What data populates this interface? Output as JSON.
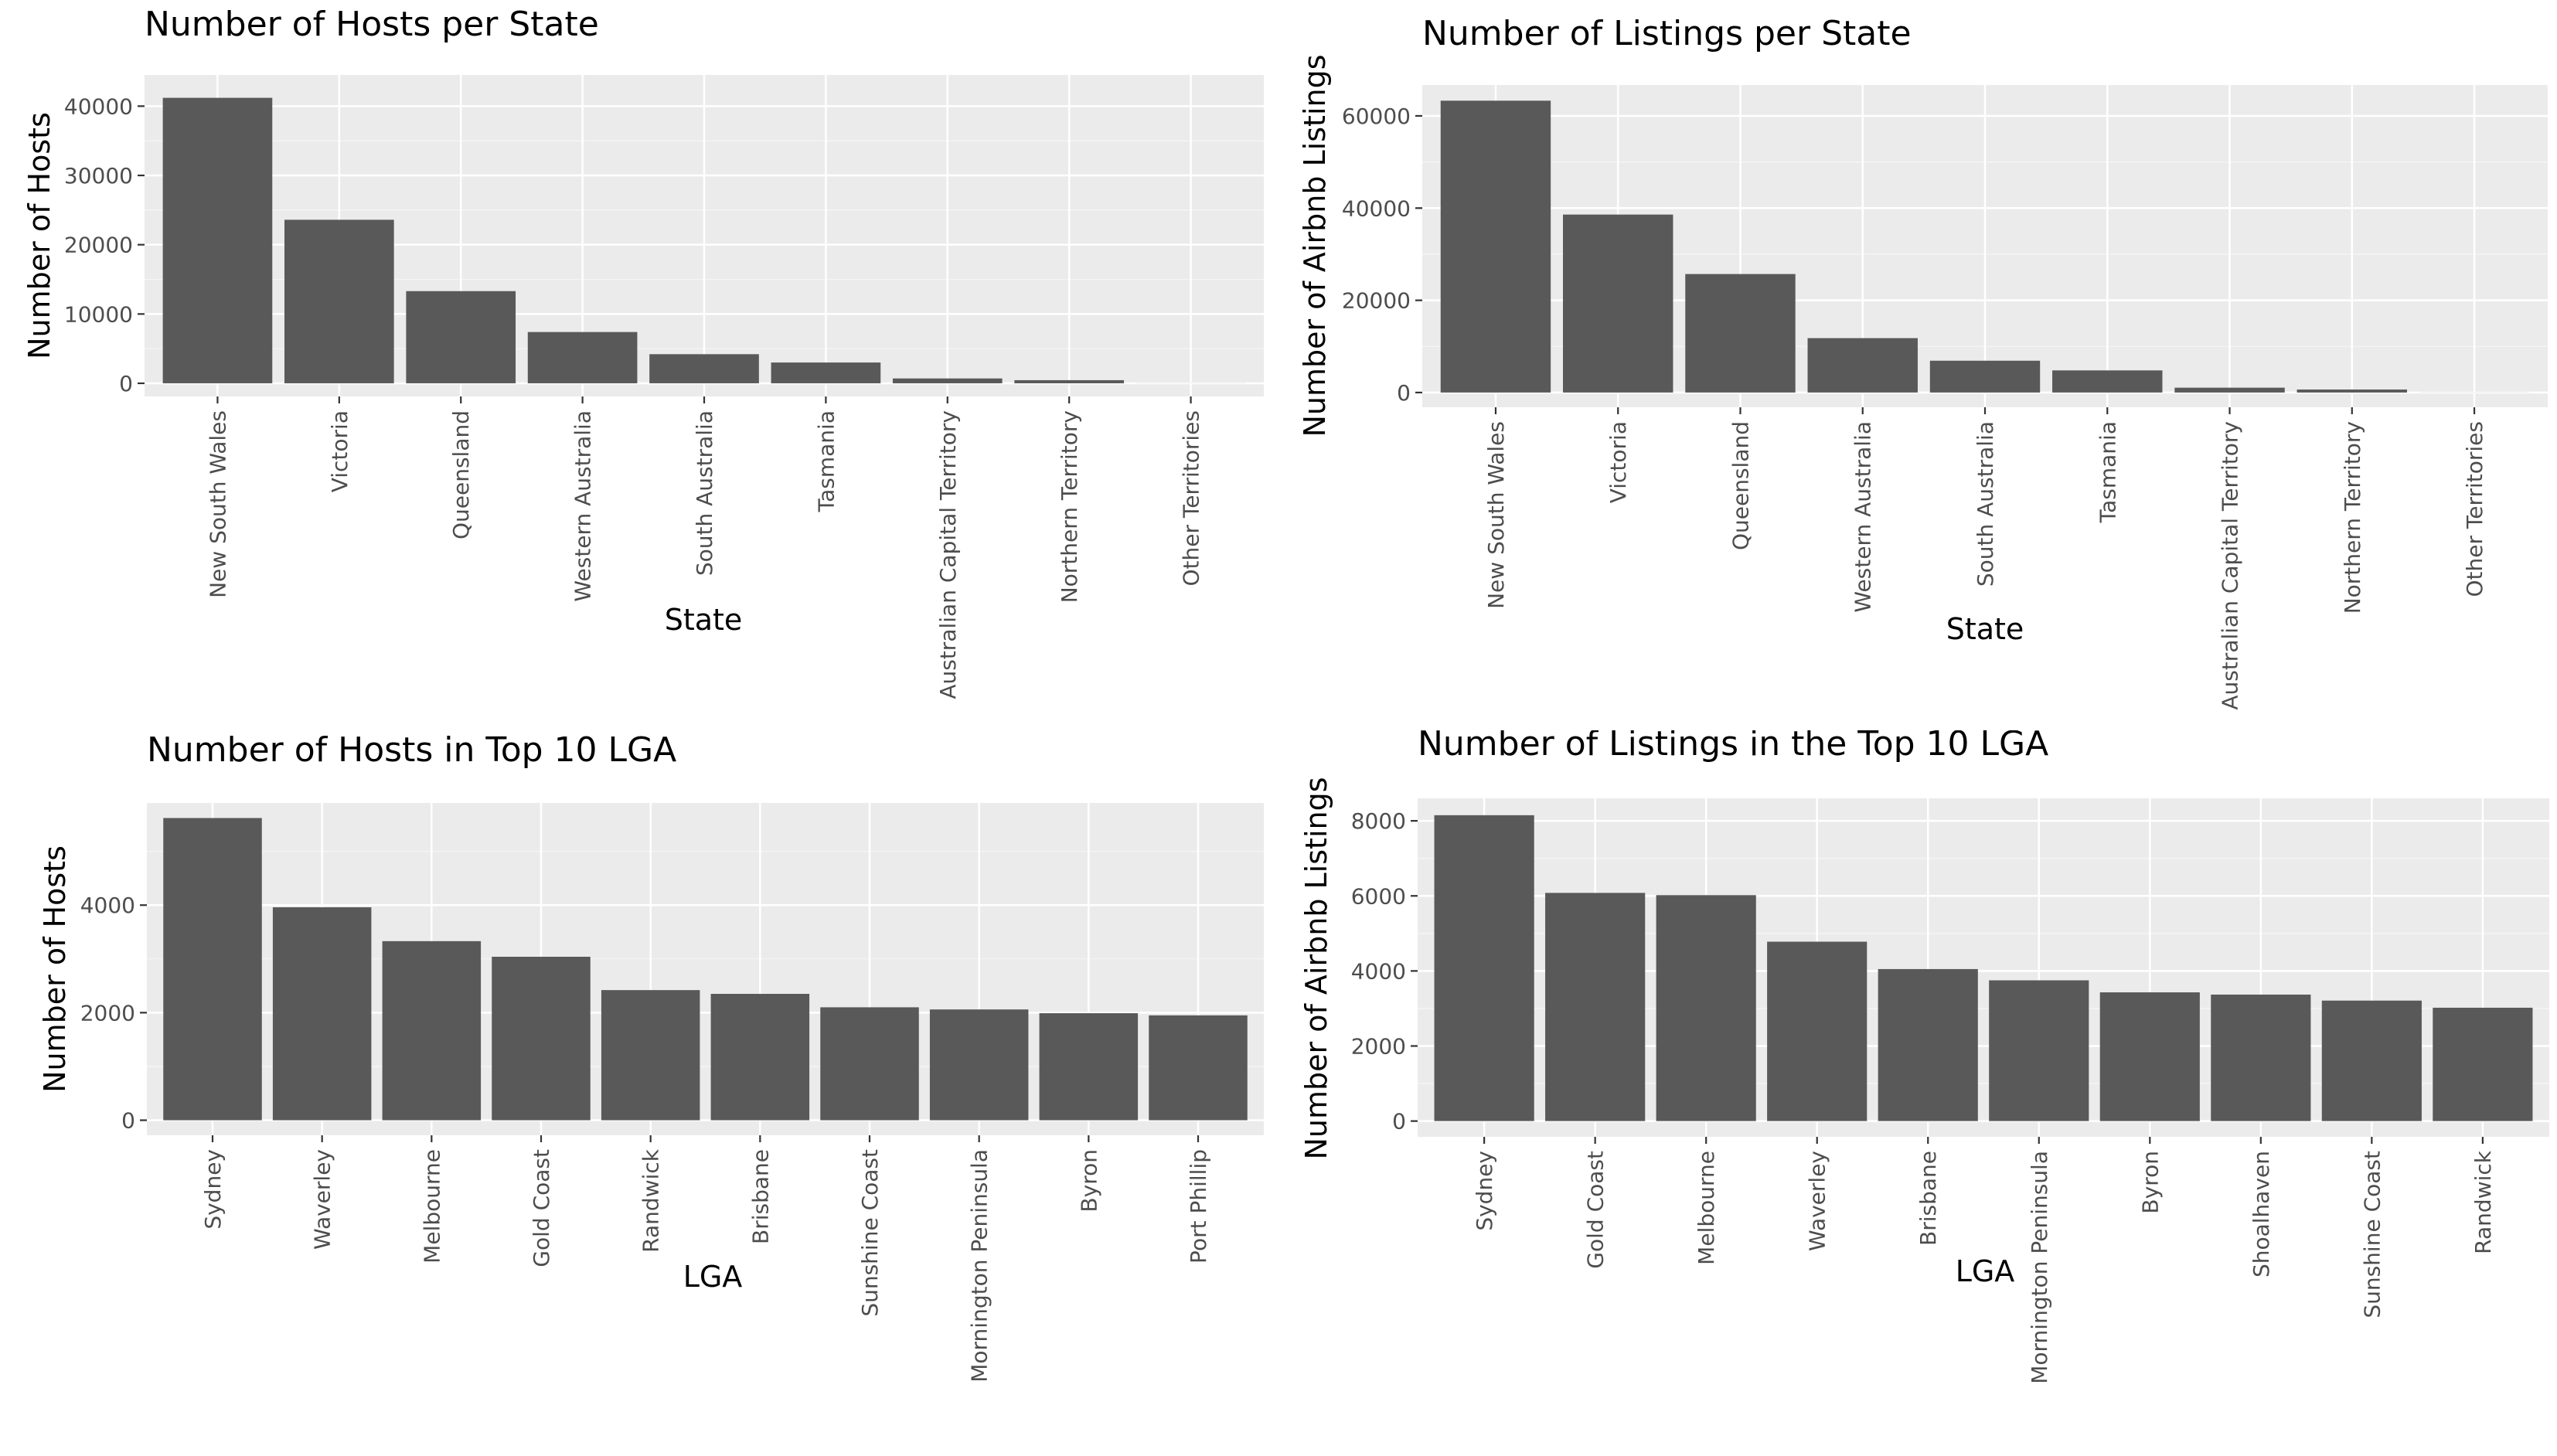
{
  "chart_data": [
    {
      "id": "hosts_state",
      "type": "bar",
      "title": "Number of Hosts per State",
      "xlabel": "State",
      "ylabel": "Number of Hosts",
      "categories": [
        "New South Wales",
        "Victoria",
        "Queensland",
        "Western Australia",
        "South Australia",
        "Tasmania",
        "Australian Capital Territory",
        "Northern Territory",
        "Other Territories"
      ],
      "values": [
        41200,
        23600,
        13300,
        7400,
        4200,
        3000,
        700,
        450,
        5
      ],
      "ylim": [
        -1900,
        44500
      ],
      "yticks": [
        0,
        10000,
        20000,
        30000,
        40000
      ],
      "grid": true,
      "legend": "none"
    },
    {
      "id": "listings_state",
      "type": "bar",
      "title": "Number of Listings per State",
      "xlabel": "State",
      "ylabel": "Number of Airbnb Listings",
      "categories": [
        "New South Wales",
        "Victoria",
        "Queensland",
        "Western Australia",
        "South Australia",
        "Tasmania",
        "Australian Capital Territory",
        "Northern Territory",
        "Other Territories"
      ],
      "values": [
        63300,
        38600,
        25700,
        11800,
        6900,
        4800,
        1050,
        650,
        5
      ],
      "ylim": [
        -3200,
        66700
      ],
      "yticks": [
        0,
        20000,
        40000,
        60000
      ],
      "grid": true,
      "legend": "none"
    },
    {
      "id": "hosts_lga",
      "type": "bar",
      "title": "Number of Hosts in Top 10 LGA",
      "xlabel": "LGA",
      "ylabel": "Number of Hosts",
      "categories": [
        "Sydney",
        "Waverley",
        "Melbourne",
        "Gold Coast",
        "Randwick",
        "Brisbane",
        "Sunshine Coast",
        "Mornington Peninsula",
        "Byron",
        "Port Phillip"
      ],
      "values": [
        5620,
        3960,
        3330,
        3040,
        2420,
        2350,
        2100,
        2060,
        1990,
        1950
      ],
      "ylim": [
        -280,
        5900
      ],
      "yticks": [
        0,
        2000,
        4000
      ],
      "grid": true,
      "legend": "none"
    },
    {
      "id": "listings_lga",
      "type": "bar",
      "title": "Number of Listings in the Top 10 LGA",
      "xlabel": "LGA",
      "ylabel": "Number of Airbnb Listings",
      "categories": [
        "Sydney",
        "Gold Coast",
        "Melbourne",
        "Waverley",
        "Brisbane",
        "Mornington Peninsula",
        "Byron",
        "Shoalhaven",
        "Sunshine Coast",
        "Randwick"
      ],
      "values": [
        8150,
        6080,
        6020,
        4780,
        4050,
        3750,
        3430,
        3370,
        3210,
        3020
      ],
      "ylim": [
        -420,
        8600
      ],
      "yticks": [
        0,
        2000,
        4000,
        6000,
        8000
      ],
      "grid": true,
      "legend": "none"
    }
  ]
}
